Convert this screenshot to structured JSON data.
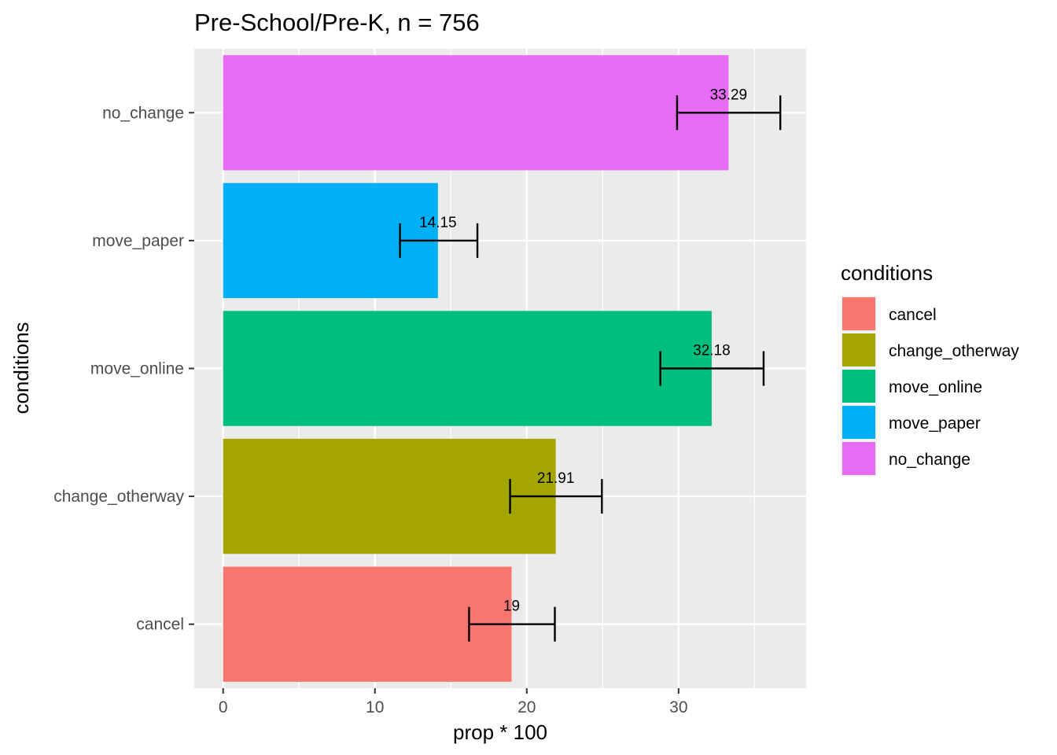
{
  "chart_data": {
    "type": "bar",
    "orientation": "horizontal",
    "title": "Pre-School/Pre-K, n = 756",
    "xlabel": "prop * 100",
    "ylabel": "conditions",
    "xlim": [
      -1.9,
      38.4
    ],
    "x_ticks": [
      0,
      10,
      20,
      30
    ],
    "x_tick_labels": [
      "0",
      "10",
      "20",
      "30"
    ],
    "categories": [
      "cancel",
      "change_otherway",
      "move_online",
      "move_paper",
      "no_change"
    ],
    "values": [
      19,
      21.91,
      32.18,
      14.15,
      33.29
    ],
    "data_labels": [
      "19",
      "21.91",
      "32.18",
      "14.15",
      "33.29"
    ],
    "error_low": [
      16.2,
      18.9,
      28.8,
      11.65,
      29.9
    ],
    "error_high": [
      21.85,
      24.95,
      35.6,
      16.75,
      36.7
    ],
    "colors": [
      "#F8766D",
      "#A3A500",
      "#00BF7D",
      "#00B0F6",
      "#E76BF3"
    ],
    "grid": true,
    "background": "#EBEBEB",
    "legend": {
      "title": "conditions",
      "position": "right",
      "entries": [
        "cancel",
        "change_otherway",
        "move_online",
        "move_paper",
        "no_change"
      ]
    }
  }
}
